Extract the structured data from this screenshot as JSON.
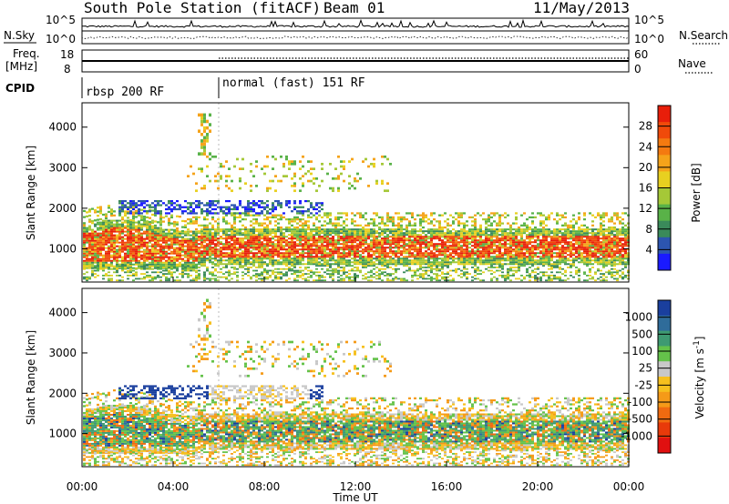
{
  "header": {
    "station": "South Pole Station (fitACF)",
    "beam": "Beam 01",
    "date": "11/May/2013"
  },
  "side_labels": {
    "nsky": "N.Sky",
    "freq": "Freq.",
    "mhz": "[MHz]",
    "cpid": "CPID",
    "nsearch": "N.Search",
    "nave": "Nave"
  },
  "strip_ticks": {
    "nsky_hi": "10^5",
    "nsky_lo": "10^0",
    "freq_hi": "18",
    "freq_lo": "8",
    "nave_hi": "60",
    "nave_lo": "0"
  },
  "cpid_segments": [
    {
      "label": "rbsp 200 RF",
      "start_hour": 0
    },
    {
      "label": "normal (fast) 151 RF",
      "start_hour": 6
    }
  ],
  "chart_data": [
    {
      "type": "heatmap",
      "name": "power",
      "ylabel": "Slant Range [km]",
      "xlabel": "Time UT",
      "x_ticks": [
        "00:00",
        "04:00",
        "08:00",
        "12:00",
        "16:00",
        "20:00",
        "00:00"
      ],
      "x_range_hours": [
        0,
        24
      ],
      "y_ticks": [
        1000,
        2000,
        3000,
        4000
      ],
      "ylim": [
        180,
        4600
      ],
      "colorbar": {
        "label": "Power [dB]",
        "ticks": [
          "4",
          "8",
          "12",
          "16",
          "20",
          "24",
          "28"
        ],
        "colors": [
          "#1a1aff",
          "#2c55b0",
          "#3a8a5a",
          "#59b248",
          "#a5c837",
          "#e8d020",
          "#f5a31a",
          "#f47a10",
          "#f04a0a",
          "#e81e0a"
        ]
      },
      "features": [
        {
          "desc_range_km": [
            600,
            1800
          ],
          "dominant_level_db": 28,
          "hours": [
            0,
            24
          ]
        },
        {
          "desc_range_km": [
            1800,
            2200
          ],
          "dominant_level_db": 8,
          "hours": [
            1.5,
            10.5
          ]
        },
        {
          "desc_range_km": [
            2500,
            3200
          ],
          "dominant_level_db": 16,
          "hours": [
            5,
            13.5
          ]
        }
      ]
    },
    {
      "type": "heatmap",
      "name": "velocity",
      "ylabel": "Slant Range [km]",
      "xlabel": "Time UT",
      "x_ticks": [
        "00:00",
        "04:00",
        "08:00",
        "12:00",
        "16:00",
        "20:00",
        "00:00"
      ],
      "x_range_hours": [
        0,
        24
      ],
      "y_ticks": [
        1000,
        2000,
        3000,
        4000
      ],
      "ylim": [
        180,
        4600
      ],
      "colorbar": {
        "label": "Velocity [m s^-1]",
        "ticks": [
          "1000",
          "500",
          "100",
          "25",
          "-25",
          "-100",
          "-500",
          "-1000"
        ],
        "colors": [
          "#1a3f9e",
          "#2f6c9a",
          "#3e9a72",
          "#64c24a",
          "#c8c8c8",
          "#f6c01e",
          "#f59a18",
          "#f06a10",
          "#e83a0a",
          "#e01010"
        ]
      }
    }
  ]
}
